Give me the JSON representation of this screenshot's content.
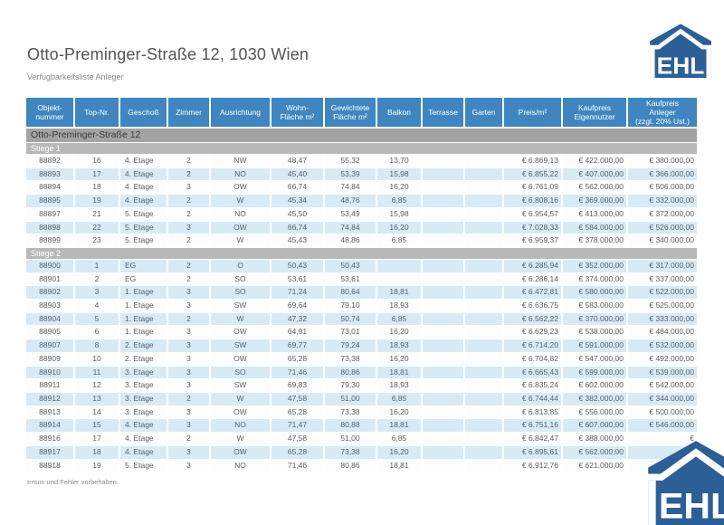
{
  "page": {
    "title": "Otto-Preminger-Straße 12, 1030 Wien",
    "subtitle": "Verfügbarkeitsliste Anleger",
    "footer_note": "Irrtum und Fehler vorbehalten."
  },
  "logo": {
    "text": "EHL"
  },
  "colors": {
    "header_blue": "#3f86c0",
    "row_alt_blue": "#d7ebf7",
    "building_bar": "#a3a3a3",
    "stiege_bar": "#b8b8b8",
    "logo_blue": "#2d5f97"
  },
  "table": {
    "columns": [
      "Objekt-\nnummer",
      "Top-Nr.",
      "Geschoß",
      "Zimmer",
      "Ausrichtung",
      "Wohn-\nFläche m²",
      "Gewichtete\nFläche m²",
      "Balkon",
      "Terrasse",
      "Garten",
      "Preis/m²",
      "Kaufpreis\nEigennutzer",
      "Kaufpreis\nAnleger\n(zzgl. 20% Ust.)"
    ],
    "building_header": "Otto-Preminger-Straße 12",
    "sections": [
      {
        "label": "Stiege 1",
        "rows": [
          [
            "88892",
            "16",
            "4. Etage",
            "2",
            "NW",
            "48,47",
            "55,32",
            "13,70",
            "",
            "",
            "€ 6.869,13",
            "€ 422.000,00",
            "€ 380.000,00"
          ],
          [
            "88893",
            "17",
            "4. Etage",
            "2",
            "NO",
            "45,40",
            "53,39",
            "15,98",
            "",
            "",
            "€ 6.855,22",
            "€ 407.000,00",
            "€ 366.000,00"
          ],
          [
            "88894",
            "18",
            "4. Etage",
            "3",
            "OW",
            "66,74",
            "74,84",
            "16,20",
            "",
            "",
            "€ 6.761,09",
            "€ 562.000,00",
            "€ 506.000,00"
          ],
          [
            "88895",
            "19",
            "4. Etage",
            "2",
            "W",
            "45,34",
            "48,76",
            "6,85",
            "",
            "",
            "€ 6.808,16",
            "€ 369.000,00",
            "€ 332.000,00"
          ],
          [
            "88897",
            "21",
            "5. Etage",
            "2",
            "NO",
            "45,50",
            "53,49",
            "15,98",
            "",
            "",
            "€ 6.954,57",
            "€ 413.000,00",
            "€ 372.000,00"
          ],
          [
            "88898",
            "22",
            "5. Etage",
            "3",
            "OW",
            "66,74",
            "74,84",
            "16,20",
            "",
            "",
            "€ 7.028,33",
            "€ 584.000,00",
            "€ 526.000,00"
          ],
          [
            "88899",
            "23",
            "5. Etage",
            "2",
            "W",
            "45,43",
            "48,86",
            "6,85",
            "",
            "",
            "€ 6.959,37",
            "€ 378.000,00",
            "€ 340.000,00"
          ]
        ]
      },
      {
        "label": "Stiege 2",
        "rows": [
          [
            "88900",
            "1",
            "EG",
            "2",
            "O",
            "50,43",
            "50,43",
            "",
            "",
            "",
            "€ 6.285,94",
            "€ 352.000,00",
            "€ 317.000,00"
          ],
          [
            "88901",
            "2",
            "EG",
            "2",
            "SO",
            "53,61",
            "53,61",
            "",
            "",
            "",
            "€ 6.286,14",
            "€ 374.000,00",
            "€ 337.000,00"
          ],
          [
            "88902",
            "3",
            "1. Etage",
            "3",
            "SO",
            "71,24",
            "80,64",
            "18,81",
            "",
            "",
            "€ 6.472,81",
            "€ 580.000,00",
            "€ 522.000,00"
          ],
          [
            "88903",
            "4",
            "1. Etage",
            "3",
            "SW",
            "69,64",
            "79,10",
            "18,93",
            "",
            "",
            "€ 6.636,75",
            "€ 583.000,00",
            "€ 525.000,00"
          ],
          [
            "88904",
            "5",
            "1. Etage",
            "2",
            "W",
            "47,32",
            "50,74",
            "6,85",
            "",
            "",
            "€ 6.562,22",
            "€ 370.000,00",
            "€ 333.000,00"
          ],
          [
            "88905",
            "6",
            "1. Etage",
            "3",
            "OW",
            "64,91",
            "73,01",
            "16,20",
            "",
            "",
            "€ 6.629,23",
            "€ 538.000,00",
            "€ 484.000,00"
          ],
          [
            "88907",
            "8",
            "2. Etage",
            "3",
            "SW",
            "69,77",
            "79,24",
            "18,93",
            "",
            "",
            "€ 6.714,20",
            "€ 591.000,00",
            "€ 532.000,00"
          ],
          [
            "88909",
            "10",
            "2. Etage",
            "3",
            "OW",
            "65,28",
            "73,38",
            "16,20",
            "",
            "",
            "€ 6.704,82",
            "€ 547.000,00",
            "€ 492.000,00"
          ],
          [
            "88910",
            "11",
            "3. Etage",
            "3",
            "SO",
            "71,46",
            "80,86",
            "18,81",
            "",
            "",
            "€ 6.665,43",
            "€ 599.000,00",
            "€ 539.000,00"
          ],
          [
            "88911",
            "12",
            "3. Etage",
            "3",
            "SW",
            "69,83",
            "79,30",
            "18,93",
            "",
            "",
            "€ 6.835,24",
            "€ 602.000,00",
            "€ 542.000,00"
          ],
          [
            "88912",
            "13",
            "3. Etage",
            "2",
            "W",
            "47,58",
            "51,00",
            "6,85",
            "",
            "",
            "€ 6.744,44",
            "€ 382.000,00",
            "€ 344.000,00"
          ],
          [
            "88913",
            "14",
            "3. Etage",
            "3",
            "OW",
            "65,28",
            "73,38",
            "16,20",
            "",
            "",
            "€ 6.813,85",
            "€ 556.000,00",
            "€ 500.000,00"
          ],
          [
            "88914",
            "15",
            "4. Etage",
            "3",
            "NO",
            "71,47",
            "80,88",
            "18,81",
            "",
            "",
            "€ 6.751,16",
            "€ 607.000,00",
            "€ 546.000,00"
          ],
          [
            "88916",
            "17",
            "4. Etage",
            "2",
            "W",
            "47,58",
            "51,00",
            "6,85",
            "",
            "",
            "€ 6.842,47",
            "€ 388.000,00",
            "€"
          ],
          [
            "88917",
            "18",
            "4. Etage",
            "3",
            "OW",
            "65,28",
            "73,38",
            "16,20",
            "",
            "",
            "€ 6.895,61",
            "€ 562.000,00",
            "€"
          ],
          [
            "88918",
            "19",
            "5. Etage",
            "3",
            "NO",
            "71,46",
            "80,86",
            "18,81",
            "",
            "",
            "€ 6.912,76",
            "€ 621.000,00",
            "€"
          ]
        ]
      }
    ]
  }
}
